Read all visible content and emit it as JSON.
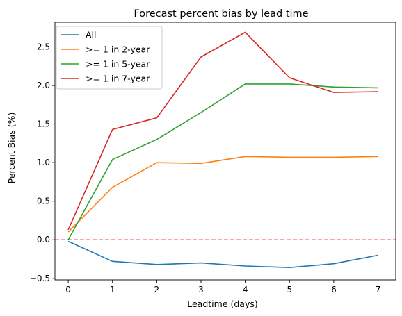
{
  "chart_data": {
    "type": "line",
    "title": "Forecast percent bias by lead time",
    "xlabel": "Leadtime (days)",
    "ylabel": "Percent Bias (%)",
    "x": [
      0,
      1,
      2,
      3,
      4,
      5,
      6,
      7
    ],
    "xlim": [
      -0.3,
      7.4
    ],
    "ylim": [
      -0.52,
      2.82
    ],
    "xticks": [
      0,
      1,
      2,
      3,
      4,
      5,
      6,
      7
    ],
    "yticks": [
      -0.5,
      0.0,
      0.5,
      1.0,
      1.5,
      2.0,
      2.5
    ],
    "ytick_labels": [
      "−0.5",
      "0.0",
      "0.5",
      "1.0",
      "1.5",
      "2.0",
      "2.5"
    ],
    "grid": false,
    "legend_position": "top-left",
    "series": [
      {
        "name": "All",
        "color": "#1f77b4",
        "values": [
          -0.02,
          -0.28,
          -0.32,
          -0.3,
          -0.34,
          -0.36,
          -0.31,
          -0.2
        ]
      },
      {
        "name": ">= 1 in 2-year",
        "color": "#ff7f0e",
        "values": [
          0.1,
          0.68,
          1.0,
          0.99,
          1.08,
          1.07,
          1.07,
          1.08
        ]
      },
      {
        "name": ">= 1 in 5-year",
        "color": "#2ca02c",
        "values": [
          0.0,
          1.04,
          1.3,
          1.65,
          2.02,
          2.02,
          1.98,
          1.97
        ]
      },
      {
        "name": ">= 1 in 7-year",
        "color": "#d62728",
        "values": [
          0.13,
          1.43,
          1.58,
          2.37,
          2.69,
          2.1,
          1.91,
          1.92
        ]
      }
    ],
    "reference_line": {
      "y": 0.0,
      "color": "#ff0000",
      "style": "dashed"
    }
  }
}
